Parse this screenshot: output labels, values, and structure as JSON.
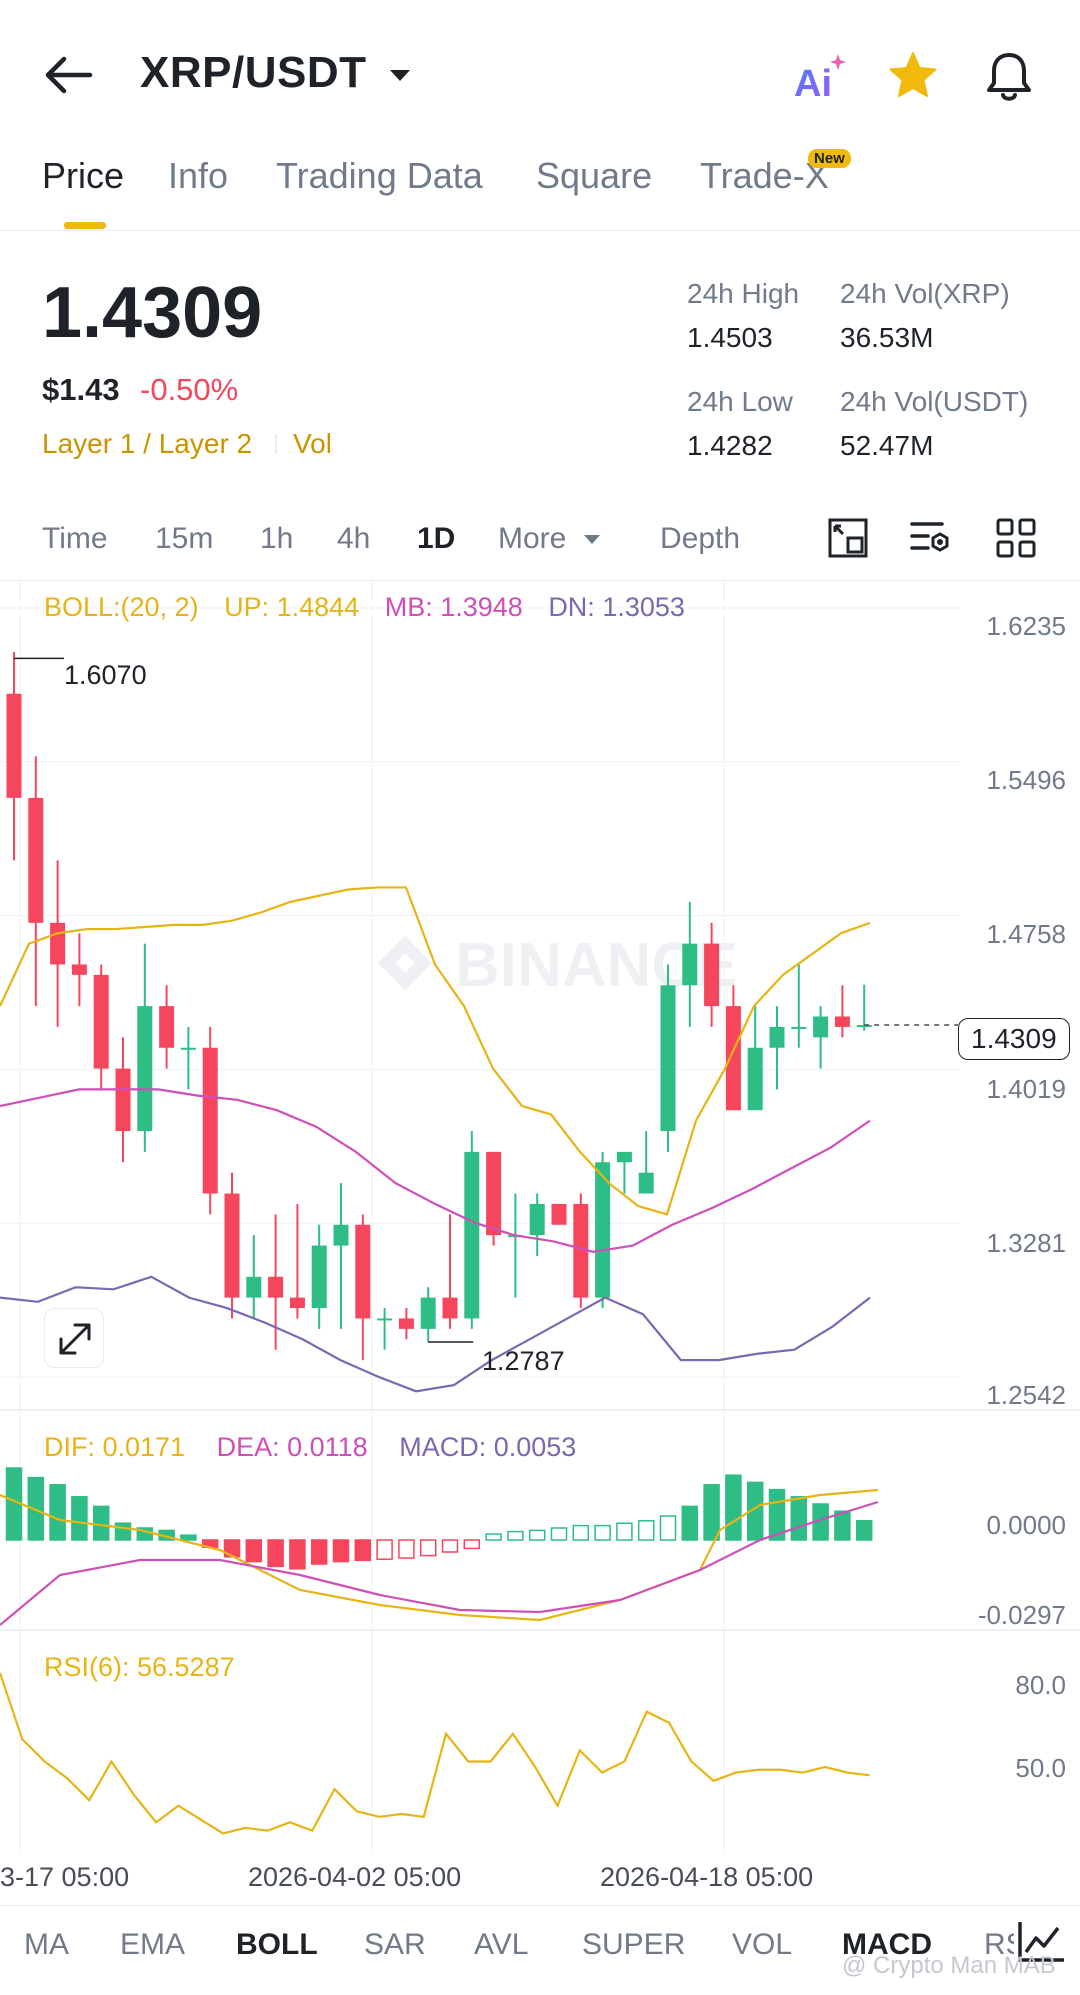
{
  "header": {
    "pair": "XRP/USDT",
    "ai_label": "Ai"
  },
  "tabs": [
    {
      "label": "Price",
      "active": true
    },
    {
      "label": "Info"
    },
    {
      "label": "Trading Data"
    },
    {
      "label": "Square"
    },
    {
      "label": "Trade-X",
      "badge": "New"
    }
  ],
  "ticker": {
    "last_price": "1.4309",
    "usd_price": "$1.43",
    "change": "-0.50%",
    "tag1": "Layer 1 / Layer 2",
    "tag2": "Vol",
    "high_label": "24h High",
    "high_value": "1.4503",
    "vol_base_label": "24h Vol(XRP)",
    "vol_base_value": "36.53M",
    "low_label": "24h Low",
    "low_value": "1.4282",
    "vol_quote_label": "24h Vol(USDT)",
    "vol_quote_value": "52.47M"
  },
  "timeframes": [
    "Time",
    "15m",
    "1h",
    "4h",
    "1D",
    "More",
    "Depth"
  ],
  "active_timeframe": "1D",
  "boll": {
    "name": "BOLL:(20, 2)",
    "up": "UP: 1.4844",
    "mb": "MB: 1.3948",
    "dn": "DN: 1.3053"
  },
  "macd": {
    "dif": "DIF: 0.0171",
    "dea": "DEA: 0.0118",
    "macd": "MACD: 0.0053"
  },
  "rsi": {
    "label": "RSI(6): 56.5287"
  },
  "price_axis": [
    "1.6235",
    "1.5496",
    "1.4758",
    "1.4019",
    "1.3281",
    "1.2542"
  ],
  "macd_axis": [
    "0.0000",
    "-0.0297"
  ],
  "rsi_axis": [
    "80.0",
    "50.0"
  ],
  "current_price_tag": "1.4309",
  "high_marker": "1.6070",
  "low_marker": "1.2787",
  "watermark": "BINANCE",
  "date_labels": [
    "3-17 05:00",
    "2026-04-02 05:00",
    "2026-04-18 05:00"
  ],
  "indicator_tabs": [
    "MA",
    "EMA",
    "BOLL",
    "SAR",
    "AVL",
    "SUPER",
    "VOL",
    "MACD",
    "RSI"
  ],
  "active_main_indicator": "BOLL",
  "active_sub_indicator": "MACD",
  "footer_watermark": "@ Crypto Man MAB",
  "colors": {
    "up": "#2ebd85",
    "down": "#f6465d",
    "accent": "#f0b90b",
    "boll_up": "#e7b416",
    "boll_mb": "#cf4fb8",
    "boll_dn": "#7b68b0"
  },
  "chart_data": {
    "type": "candlestick",
    "x_axis": "date (1D)",
    "ylim": [
      1.2542,
      1.6235
    ],
    "candles": [
      [
        1.59,
        1.54,
        1.61,
        1.51
      ],
      [
        1.54,
        1.48,
        1.56,
        1.44
      ],
      [
        1.48,
        1.46,
        1.51,
        1.43
      ],
      [
        1.46,
        1.455,
        1.475,
        1.44
      ],
      [
        1.455,
        1.41,
        1.46,
        1.4
      ],
      [
        1.41,
        1.38,
        1.425,
        1.365
      ],
      [
        1.38,
        1.44,
        1.47,
        1.37
      ],
      [
        1.44,
        1.42,
        1.45,
        1.41
      ],
      [
        1.42,
        1.42,
        1.43,
        1.4
      ],
      [
        1.42,
        1.35,
        1.43,
        1.34
      ],
      [
        1.35,
        1.3,
        1.36,
        1.29
      ],
      [
        1.3,
        1.31,
        1.33,
        1.29
      ],
      [
        1.31,
        1.3,
        1.34,
        1.275
      ],
      [
        1.3,
        1.295,
        1.345,
        1.29
      ],
      [
        1.295,
        1.325,
        1.335,
        1.285
      ],
      [
        1.325,
        1.335,
        1.355,
        1.285
      ],
      [
        1.335,
        1.29,
        1.34,
        1.27
      ],
      [
        1.29,
        1.29,
        1.295,
        1.275
      ],
      [
        1.29,
        1.285,
        1.295,
        1.28
      ],
      [
        1.285,
        1.3,
        1.305,
        1.2787
      ],
      [
        1.3,
        1.29,
        1.34,
        1.285
      ],
      [
        1.29,
        1.37,
        1.38,
        1.285
      ],
      [
        1.37,
        1.33,
        1.37,
        1.325
      ],
      [
        1.33,
        1.33,
        1.35,
        1.3
      ],
      [
        1.33,
        1.345,
        1.35,
        1.32
      ],
      [
        1.345,
        1.335,
        1.345,
        1.335
      ],
      [
        1.345,
        1.3,
        1.35,
        1.295
      ],
      [
        1.3,
        1.365,
        1.37,
        1.295
      ],
      [
        1.365,
        1.37,
        1.37,
        1.35
      ],
      [
        1.35,
        1.36,
        1.38,
        1.35
      ],
      [
        1.38,
        1.45,
        1.46,
        1.37
      ],
      [
        1.45,
        1.47,
        1.49,
        1.43
      ],
      [
        1.47,
        1.44,
        1.48,
        1.43
      ],
      [
        1.44,
        1.39,
        1.45,
        1.39
      ],
      [
        1.39,
        1.42,
        1.44,
        1.39
      ],
      [
        1.42,
        1.43,
        1.44,
        1.4
      ],
      [
        1.43,
        1.43,
        1.46,
        1.42
      ],
      [
        1.425,
        1.435,
        1.44,
        1.41
      ],
      [
        1.435,
        1.43,
        1.45,
        1.425
      ],
      [
        1.43,
        1.4309,
        1.4503,
        1.4282
      ]
    ],
    "boll_up": [
      1.44,
      1.47,
      1.475,
      1.477,
      1.477,
      1.478,
      1.479,
      1.479,
      1.481,
      1.485,
      1.49,
      1.493,
      1.496,
      1.497,
      1.497,
      1.46,
      1.44,
      1.41,
      1.392,
      1.388,
      1.37,
      1.355,
      1.344,
      1.34,
      1.385,
      1.41,
      1.44,
      1.455,
      1.465,
      1.475,
      1.48
    ],
    "boll_mb": [
      1.392,
      1.396,
      1.4,
      1.4,
      1.4,
      1.397,
      1.395,
      1.39,
      1.382,
      1.37,
      1.355,
      1.345,
      1.336,
      1.33,
      1.327,
      1.322,
      1.325,
      1.335,
      1.343,
      1.352,
      1.362,
      1.372,
      1.385
    ],
    "boll_dn": [
      1.3,
      1.298,
      1.305,
      1.304,
      1.31,
      1.3,
      1.295,
      1.288,
      1.28,
      1.27,
      1.262,
      1.255,
      1.258,
      1.27,
      1.28,
      1.29,
      1.3,
      1.292,
      1.27,
      1.27,
      1.273,
      1.275,
      1.286,
      1.3
    ]
  }
}
